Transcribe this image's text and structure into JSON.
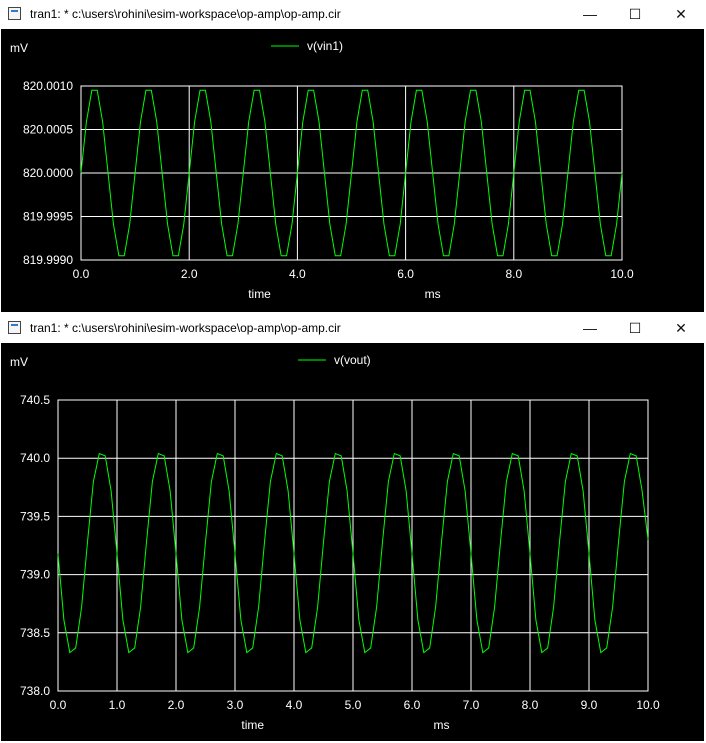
{
  "windows": [
    {
      "title": "tran1: * c:\\users\\rohini\\esim-workspace\\op-amp\\op-amp.cir",
      "controls": {
        "minimize": "—",
        "maximize": "☐",
        "close": "✕"
      }
    },
    {
      "title": "tran1: * c:\\users\\rohini\\esim-workspace\\op-amp\\op-amp.cir",
      "controls": {
        "minimize": "—",
        "maximize": "☐",
        "close": "✕"
      }
    }
  ],
  "colors": {
    "background": "#000000",
    "grid": "#ffffff",
    "trace": "#00ff00",
    "text": "#ffffff"
  },
  "chart_data": [
    {
      "type": "line",
      "unit_label": "mV",
      "xlabel": "time",
      "xunit": "ms",
      "xlim": [
        0,
        10
      ],
      "ylim": [
        819.999,
        820.001
      ],
      "xticks": [
        0,
        2,
        4,
        6,
        8,
        10
      ],
      "xtick_labels": [
        "0.0",
        "2.0",
        "4.0",
        "6.0",
        "8.0",
        "10.0"
      ],
      "yticks": [
        819.999,
        819.9995,
        820.0,
        820.0005,
        820.001
      ],
      "ytick_labels": [
        "819.9990",
        "819.9995",
        "820.0000",
        "820.0005",
        "820.0010"
      ],
      "grid": true,
      "legend": "top-center",
      "series": [
        {
          "name": "v(vin1)",
          "x": [
            0,
            0.1,
            0.2,
            0.3,
            0.4,
            0.5,
            0.6,
            0.7,
            0.8,
            0.9,
            1,
            1.1,
            1.2,
            1.3,
            1.4,
            1.5,
            1.6,
            1.7,
            1.8,
            1.9,
            2,
            2.1,
            2.2,
            2.3,
            2.4,
            2.5,
            2.6,
            2.7,
            2.8,
            2.9,
            3,
            3.1,
            3.2,
            3.3,
            3.4,
            3.5,
            3.6,
            3.7,
            3.8,
            3.9,
            4,
            4.1,
            4.2,
            4.3,
            4.4,
            4.5,
            4.6,
            4.7,
            4.8,
            4.9,
            5,
            5.1,
            5.2,
            5.3,
            5.4,
            5.5,
            5.6,
            5.7,
            5.8,
            5.9,
            6,
            6.1,
            6.2,
            6.3,
            6.4,
            6.5,
            6.6,
            6.7,
            6.8,
            6.9,
            7,
            7.1,
            7.2,
            7.3,
            7.4,
            7.5,
            7.6,
            7.7,
            7.8,
            7.9,
            8,
            8.1,
            8.2,
            8.3,
            8.4,
            8.5,
            8.6,
            8.7,
            8.8,
            8.9,
            9,
            9.1,
            9.2,
            9.3,
            9.4,
            9.5,
            9.6,
            9.7,
            9.8,
            9.9,
            10
          ],
          "y": [
            820.0,
            820.000588,
            820.000951,
            820.000951,
            820.000588,
            820.0,
            819.999412,
            819.999049,
            819.999049,
            819.999412,
            820.0,
            820.000588,
            820.000951,
            820.000951,
            820.000588,
            820.0,
            819.999412,
            819.999049,
            819.999049,
            819.999412,
            820.0,
            820.000588,
            820.000951,
            820.000951,
            820.000588,
            820.0,
            819.999412,
            819.999049,
            819.999049,
            819.999412,
            820.0,
            820.000588,
            820.000951,
            820.000951,
            820.000588,
            820.0,
            819.999412,
            819.999049,
            819.999049,
            819.999412,
            820.0,
            820.000588,
            820.000951,
            820.000951,
            820.000588,
            820.0,
            819.999412,
            819.999049,
            819.999049,
            819.999412,
            820.0,
            820.000588,
            820.000951,
            820.000951,
            820.000588,
            820.0,
            819.999412,
            819.999049,
            819.999049,
            819.999412,
            820.0,
            820.000588,
            820.000951,
            820.000951,
            820.000588,
            820.0,
            819.999412,
            819.999049,
            819.999049,
            819.999412,
            820.0,
            820.000588,
            820.000951,
            820.000951,
            820.000588,
            820.0,
            819.999412,
            819.999049,
            819.999049,
            819.999412,
            820.0,
            820.000588,
            820.000951,
            820.000951,
            820.000588,
            820.0,
            819.999412,
            819.999049,
            819.999049,
            819.999412,
            820.0,
            820.000588,
            820.000951,
            820.000951,
            820.000588,
            820.0,
            819.999412,
            819.999049,
            819.999049,
            819.999412,
            820.0
          ]
        }
      ]
    },
    {
      "type": "line",
      "unit_label": "mV",
      "xlabel": "time",
      "xunit": "ms",
      "xlim": [
        0,
        10
      ],
      "ylim": [
        738.0,
        740.5
      ],
      "xticks": [
        0,
        1,
        2,
        3,
        4,
        5,
        6,
        7,
        8,
        9,
        10
      ],
      "xtick_labels": [
        "0.0",
        "1.0",
        "2.0",
        "3.0",
        "4.0",
        "5.0",
        "6.0",
        "7.0",
        "8.0",
        "9.0",
        "10.0"
      ],
      "yticks": [
        738.0,
        738.5,
        739.0,
        739.5,
        740.0,
        740.5
      ],
      "ytick_labels": [
        "738.0",
        "738.5",
        "739.0",
        "739.5",
        "740.0",
        "740.5"
      ],
      "grid": true,
      "legend": "top-center",
      "series": [
        {
          "name": "v(vout)",
          "x": [
            0,
            0.1,
            0.2,
            0.3,
            0.4,
            0.5,
            0.6,
            0.7,
            0.8,
            0.9,
            1,
            1.1,
            1.2,
            1.3,
            1.4,
            1.5,
            1.6,
            1.7,
            1.8,
            1.9,
            2,
            2.1,
            2.2,
            2.3,
            2.4,
            2.5,
            2.6,
            2.7,
            2.8,
            2.9,
            3,
            3.1,
            3.2,
            3.3,
            3.4,
            3.5,
            3.6,
            3.7,
            3.8,
            3.9,
            4,
            4.1,
            4.2,
            4.3,
            4.4,
            4.5,
            4.6,
            4.7,
            4.8,
            4.9,
            5,
            5.1,
            5.2,
            5.3,
            5.4,
            5.5,
            5.6,
            5.7,
            5.8,
            5.9,
            6,
            6.1,
            6.2,
            6.3,
            6.4,
            6.5,
            6.6,
            6.7,
            6.8,
            6.9,
            7,
            7.1,
            7.2,
            7.3,
            7.4,
            7.5,
            7.6,
            7.7,
            7.8,
            7.9,
            8,
            8.1,
            8.2,
            8.3,
            8.4,
            8.5,
            8.6,
            8.7,
            8.8,
            8.9,
            9,
            9.1,
            9.2,
            9.3,
            9.4,
            9.5,
            9.6,
            9.7,
            9.8,
            9.9,
            10
          ],
          "y": [
            739.18,
            738.61,
            738.33,
            738.37,
            738.72,
            739.28,
            739.8,
            740.04,
            740.02,
            739.72,
            739.18,
            738.61,
            738.33,
            738.37,
            738.72,
            739.28,
            739.8,
            740.04,
            740.02,
            739.72,
            739.18,
            738.61,
            738.33,
            738.37,
            738.72,
            739.28,
            739.8,
            740.04,
            740.02,
            739.72,
            739.18,
            738.61,
            738.33,
            738.37,
            738.72,
            739.28,
            739.8,
            740.04,
            740.02,
            739.72,
            739.18,
            738.61,
            738.33,
            738.37,
            738.72,
            739.28,
            739.8,
            740.04,
            740.02,
            739.72,
            739.18,
            738.61,
            738.33,
            738.37,
            738.72,
            739.28,
            739.8,
            740.04,
            740.02,
            739.72,
            739.18,
            738.61,
            738.33,
            738.37,
            738.72,
            739.28,
            739.8,
            740.04,
            740.02,
            739.72,
            739.18,
            738.61,
            738.33,
            738.37,
            738.72,
            739.28,
            739.8,
            740.04,
            740.02,
            739.72,
            739.18,
            738.61,
            738.33,
            738.37,
            738.72,
            739.28,
            739.8,
            740.04,
            740.02,
            739.72,
            739.18,
            738.61,
            738.33,
            738.37,
            738.72,
            739.28,
            739.8,
            740.04,
            740.02,
            739.72,
            739.3
          ]
        }
      ]
    }
  ]
}
